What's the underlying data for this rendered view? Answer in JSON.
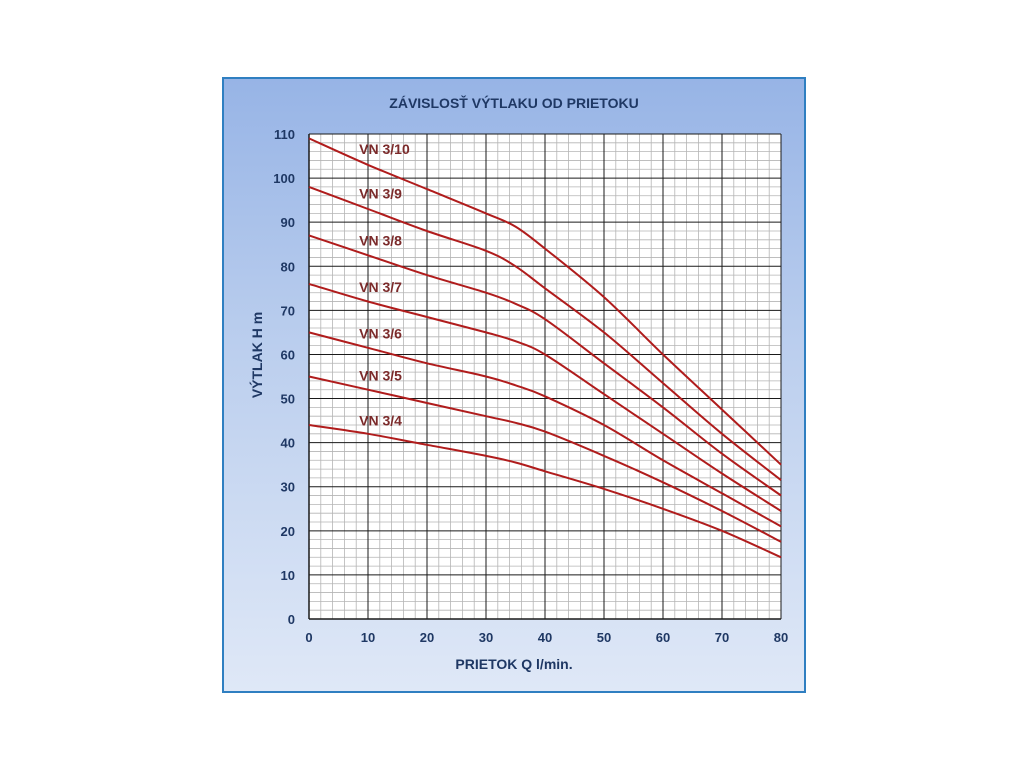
{
  "chart_data": {
    "type": "line",
    "title": "ZÁVISLOSŤ  VÝTLAKU  OD  PRIETOKU",
    "xlabel": "PRIETOK  Q  l/min.",
    "ylabel": "VÝTLAK  H  m",
    "xlim": [
      0,
      80
    ],
    "ylim": [
      0,
      110
    ],
    "x_ticks": [
      0,
      10,
      20,
      30,
      40,
      50,
      60,
      70,
      80
    ],
    "y_ticks": [
      0,
      10,
      20,
      30,
      40,
      50,
      60,
      70,
      80,
      90,
      100,
      110
    ],
    "x_minor_step": 2,
    "y_minor_step": 2,
    "grid": true,
    "legend": "labels on lines",
    "line_color": "#b01c1c",
    "x": [
      0,
      10,
      20,
      30,
      35,
      40,
      50,
      60,
      70,
      80
    ],
    "series": [
      {
        "name": "VN 3/10",
        "values": [
          109,
          103,
          97.5,
          92,
          89,
          84,
          73,
          60,
          47.5,
          35
        ]
      },
      {
        "name": "VN 3/9",
        "values": [
          98,
          93,
          88,
          83.5,
          80,
          75,
          65,
          53.5,
          42,
          31.5
        ]
      },
      {
        "name": "VN 3/8",
        "values": [
          87,
          82.5,
          78,
          74,
          71.5,
          68,
          58,
          48,
          37.5,
          28
        ]
      },
      {
        "name": "VN 3/7",
        "values": [
          76,
          72,
          68.5,
          65,
          63,
          60,
          51,
          42,
          33,
          24.5
        ]
      },
      {
        "name": "VN 3/6",
        "values": [
          65,
          61.5,
          58,
          55,
          53,
          50.5,
          44,
          36,
          28.5,
          21
        ]
      },
      {
        "name": "VN 3/5",
        "values": [
          55,
          52,
          49,
          46,
          44.5,
          42.5,
          37,
          31,
          24.5,
          17.5
        ]
      },
      {
        "name": "VN 3/4",
        "values": [
          44,
          42,
          39.5,
          37,
          35.5,
          33.5,
          29.5,
          25,
          20,
          14
        ]
      }
    ]
  }
}
